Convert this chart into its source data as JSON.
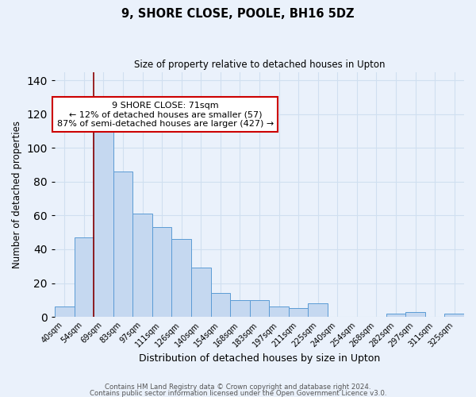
{
  "title": "9, SHORE CLOSE, POOLE, BH16 5DZ",
  "subtitle": "Size of property relative to detached houses in Upton",
  "xlabel": "Distribution of detached houses by size in Upton",
  "ylabel": "Number of detached properties",
  "bar_labels": [
    "40sqm",
    "54sqm",
    "69sqm",
    "83sqm",
    "97sqm",
    "111sqm",
    "126sqm",
    "140sqm",
    "154sqm",
    "168sqm",
    "183sqm",
    "197sqm",
    "211sqm",
    "225sqm",
    "240sqm",
    "254sqm",
    "268sqm",
    "282sqm",
    "297sqm",
    "311sqm",
    "325sqm"
  ],
  "bar_values": [
    6,
    47,
    110,
    86,
    61,
    53,
    46,
    29,
    14,
    10,
    10,
    6,
    5,
    8,
    0,
    0,
    0,
    2,
    3,
    0,
    2
  ],
  "bar_color": "#c5d8f0",
  "bar_edge_color": "#5b9bd5",
  "background_color": "#eaf1fb",
  "grid_color": "#d0dff0",
  "annotation_title": "9 SHORE CLOSE: 71sqm",
  "annotation_line1": "← 12% of detached houses are smaller (57)",
  "annotation_line2": "87% of semi-detached houses are larger (427) →",
  "ylim": [
    0,
    145
  ],
  "yticks": [
    0,
    20,
    40,
    60,
    80,
    100,
    120,
    140
  ],
  "footer1": "Contains HM Land Registry data © Crown copyright and database right 2024.",
  "footer2": "Contains public sector information licensed under the Open Government Licence v3.0."
}
